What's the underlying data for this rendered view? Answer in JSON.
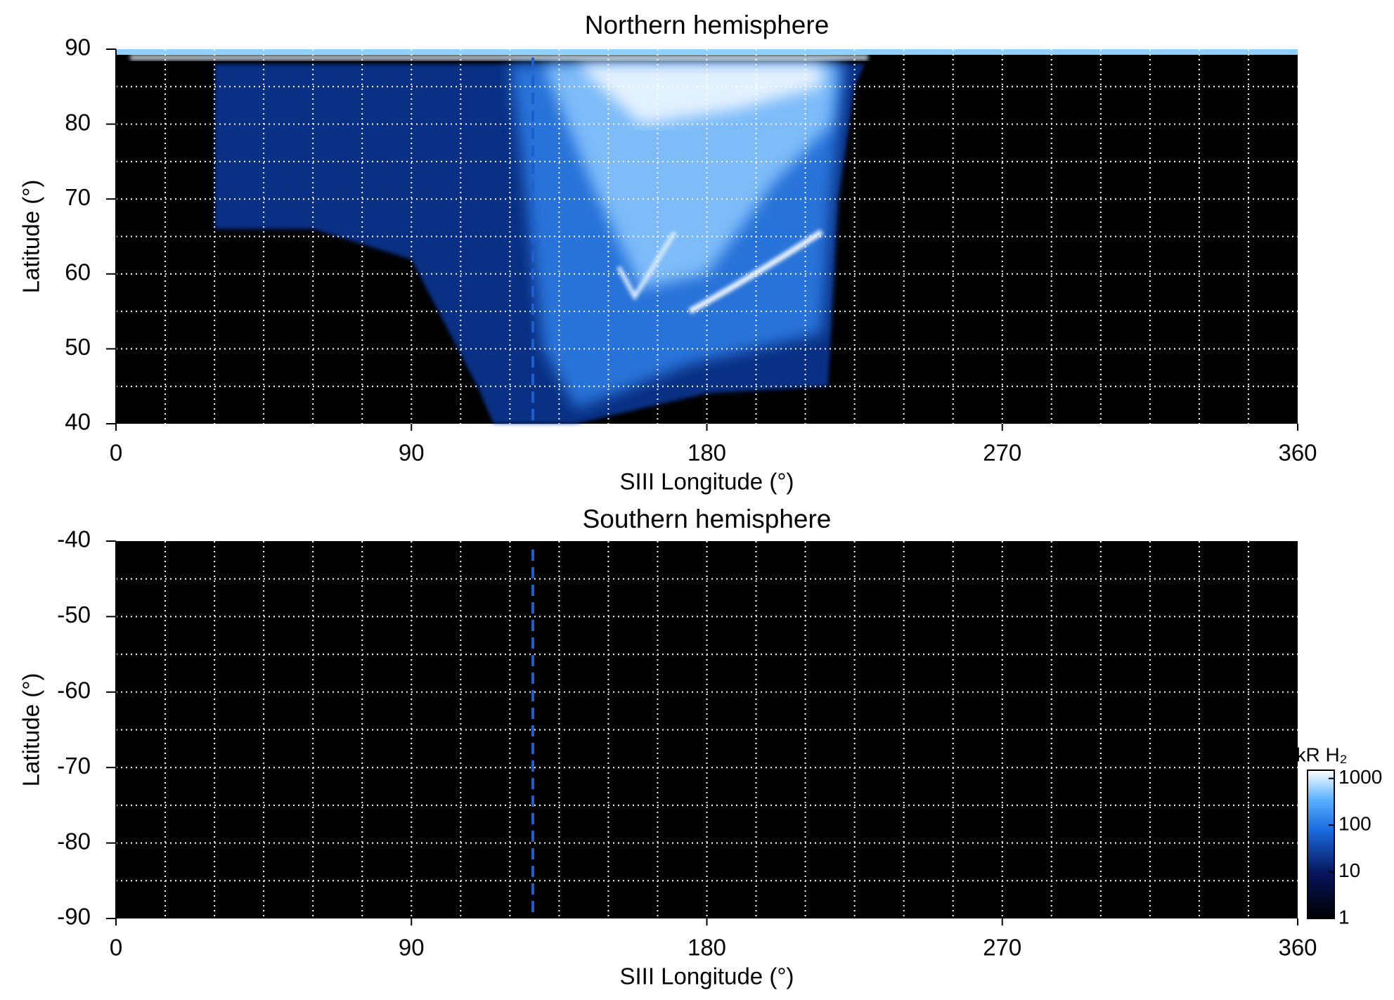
{
  "chart_data": [
    {
      "type": "heatmap",
      "title": "Northern hemisphere",
      "x_label": "SIII Longitude (°)",
      "y_label": "Latitude (°)",
      "xlim": [
        0,
        360
      ],
      "xticks": [
        0,
        90,
        180,
        270,
        360
      ],
      "ylim": [
        40,
        90
      ],
      "yticks": [
        40,
        50,
        60,
        70,
        80,
        90
      ],
      "xgrid": [
        15,
        30,
        45,
        60,
        75,
        90,
        105,
        120,
        135,
        150,
        165,
        180,
        195,
        210,
        225,
        240,
        255,
        270,
        285,
        300,
        315,
        330,
        345
      ],
      "ygrid": [
        45,
        50,
        55,
        60,
        65,
        70,
        75,
        80,
        85
      ],
      "reference_line": {
        "x": 127,
        "color": "#1a5fd0"
      }
    },
    {
      "type": "heatmap",
      "title": "Southern hemisphere",
      "x_label": "SIII Longitude (°)",
      "y_label": "Latitude (°)",
      "xlim": [
        0,
        360
      ],
      "xticks": [
        0,
        90,
        180,
        270,
        360
      ],
      "ylim": [
        -90,
        -40
      ],
      "yticks": [
        -90,
        -80,
        -70,
        -60,
        -50,
        -40
      ],
      "xgrid": [
        15,
        30,
        45,
        60,
        75,
        90,
        105,
        120,
        135,
        150,
        165,
        180,
        195,
        210,
        225,
        240,
        255,
        270,
        285,
        300,
        315,
        330,
        345
      ],
      "ygrid": [
        -85,
        -80,
        -75,
        -70,
        -65,
        -60,
        -55,
        -50,
        -45
      ],
      "reference_line": {
        "x": 127,
        "color": "#1a5fd0"
      },
      "colorbar": {
        "label": "kR H₂",
        "scale": "log",
        "lim": [
          1,
          1500
        ],
        "ticks": [
          1,
          10,
          100,
          1000
        ]
      }
    }
  ]
}
